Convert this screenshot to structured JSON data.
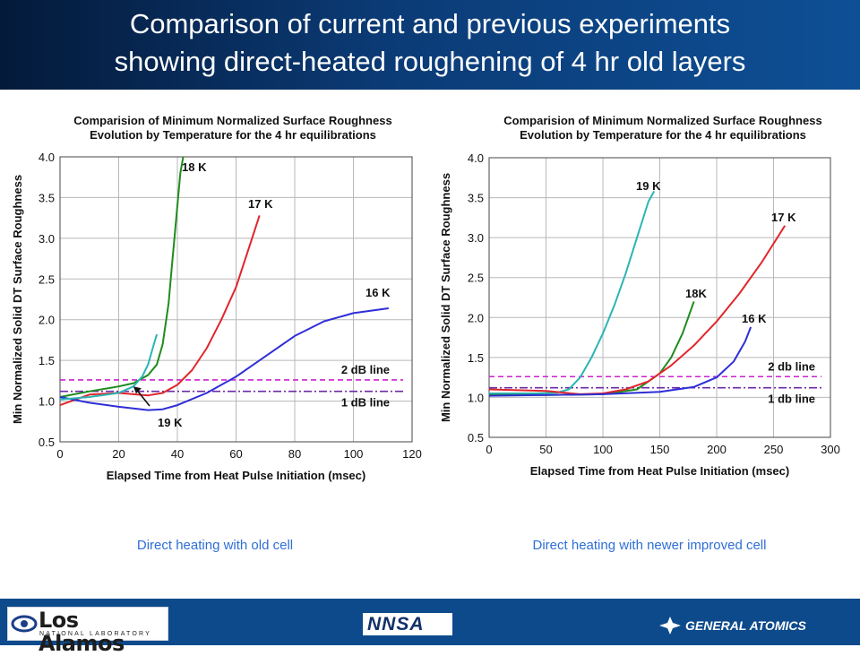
{
  "slide": {
    "title_line1": "Comparison of current and previous experiments",
    "title_line2": "showing direct-heated roughening of 4 hr old layers",
    "caption_left": "Direct heating with old cell",
    "caption_right": "Direct heating with newer improved cell"
  },
  "footer": {
    "lanl_logo_text": "Los Alamos",
    "lanl_logo_subtext": "NATIONAL LABORATORY",
    "nnsa_logo_text": "NNSA",
    "ga_logo_text": "GENERAL ATOMICS"
  },
  "chart_data": [
    {
      "type": "line",
      "title": "Comparision of Minimum Normalized Surface Roughness",
      "subtitle": "Evolution by Temperature for the 4 hr equilibrations",
      "xlabel": "Elapsed Time from Heat Pulse Initiation (msec)",
      "ylabel": "Min Normalized Solid DT Surface Roughness",
      "xlim": [
        0,
        120
      ],
      "ylim": [
        0.5,
        4.0
      ],
      "xticks": [
        "0",
        "20",
        "40",
        "60",
        "80",
        "100",
        "120"
      ],
      "yticks": [
        "0.5",
        "1.0",
        "1.5",
        "2.0",
        "2.5",
        "3.0",
        "3.5",
        "4.0"
      ],
      "grid": true,
      "series": [
        {
          "name": "18 K",
          "color": "#1e8c1e",
          "x": [
            0,
            10,
            20,
            25,
            30,
            33,
            35,
            37,
            38,
            39,
            40,
            41,
            42
          ],
          "y": [
            1.05,
            1.12,
            1.18,
            1.22,
            1.32,
            1.45,
            1.7,
            2.2,
            2.6,
            3.0,
            3.4,
            3.8,
            4.0
          ]
        },
        {
          "name": "17 K",
          "color": "#e0262b",
          "x": [
            0,
            10,
            20,
            30,
            35,
            40,
            45,
            50,
            55,
            60,
            65,
            68
          ],
          "y": [
            0.95,
            1.08,
            1.1,
            1.07,
            1.1,
            1.2,
            1.38,
            1.65,
            2.0,
            2.4,
            2.95,
            3.28
          ]
        },
        {
          "name": "16 K",
          "color": "#2e2ed6",
          "x": [
            0,
            10,
            20,
            25,
            30,
            35,
            40,
            50,
            60,
            70,
            80,
            90,
            100,
            112
          ],
          "y": [
            1.05,
            0.98,
            0.93,
            0.91,
            0.89,
            0.9,
            0.95,
            1.1,
            1.3,
            1.55,
            1.8,
            1.98,
            2.08,
            2.14
          ]
        },
        {
          "name": "19 K",
          "color": "#2bb5b5",
          "x": [
            0,
            10,
            20,
            25,
            28,
            30,
            32,
            33
          ],
          "y": [
            1.02,
            1.05,
            1.1,
            1.18,
            1.3,
            1.45,
            1.7,
            1.82
          ]
        }
      ],
      "reference_lines": [
        {
          "name": "2 dB line",
          "y": 1.26,
          "color": "#cc22cc",
          "style": "dashed"
        },
        {
          "name": "1 dB line",
          "y": 1.12,
          "color": "#6a2aa8",
          "style": "dashdot"
        }
      ],
      "annotations": [
        {
          "text": "19 K",
          "type": "arrow",
          "x": 25,
          "y": 1.18
        }
      ]
    },
    {
      "type": "line",
      "title": "Comparision of Minimum Normalized Surface Roughness",
      "subtitle": "Evolution by Temperature for the 4 hr equilibrations",
      "xlabel": "Elapsed Time from Heat Pulse Initiation (msec)",
      "ylabel": "Min Normalized Solid DT Surface Roughness",
      "xlim": [
        0,
        300
      ],
      "ylim": [
        0.5,
        4.0
      ],
      "xticks": [
        "0",
        "50",
        "100",
        "150",
        "200",
        "250",
        "300"
      ],
      "yticks": [
        "0.5",
        "1.0",
        "1.5",
        "2.0",
        "2.5",
        "3.0",
        "3.5",
        "4.0"
      ],
      "grid": true,
      "series": [
        {
          "name": "19 K",
          "color": "#2bb5b5",
          "x": [
            0,
            40,
            60,
            70,
            80,
            90,
            100,
            110,
            120,
            130,
            140,
            145
          ],
          "y": [
            1.05,
            1.05,
            1.06,
            1.1,
            1.25,
            1.5,
            1.8,
            2.15,
            2.55,
            3.0,
            3.45,
            3.58
          ]
        },
        {
          "name": "18K",
          "color": "#1e8c1e",
          "x": [
            0,
            50,
            100,
            130,
            150,
            160,
            170,
            180
          ],
          "y": [
            1.03,
            1.03,
            1.04,
            1.1,
            1.3,
            1.5,
            1.8,
            2.2
          ]
        },
        {
          "name": "17 K",
          "color": "#e0262b",
          "x": [
            0,
            50,
            80,
            100,
            120,
            140,
            160,
            180,
            200,
            220,
            240,
            260
          ],
          "y": [
            1.1,
            1.08,
            1.04,
            1.05,
            1.1,
            1.2,
            1.4,
            1.65,
            1.95,
            2.3,
            2.7,
            3.15
          ]
        },
        {
          "name": "16 K",
          "color": "#2e2ed6",
          "x": [
            0,
            50,
            100,
            150,
            180,
            200,
            215,
            225,
            230
          ],
          "y": [
            1.02,
            1.03,
            1.04,
            1.07,
            1.13,
            1.25,
            1.45,
            1.7,
            1.88
          ]
        }
      ],
      "reference_lines": [
        {
          "name": "2 db line",
          "y": 1.26,
          "color": "#cc22cc",
          "style": "dashed"
        },
        {
          "name": "1 db line",
          "y": 1.12,
          "color": "#6a2aa8",
          "style": "dashdot"
        }
      ],
      "annotations": []
    }
  ]
}
